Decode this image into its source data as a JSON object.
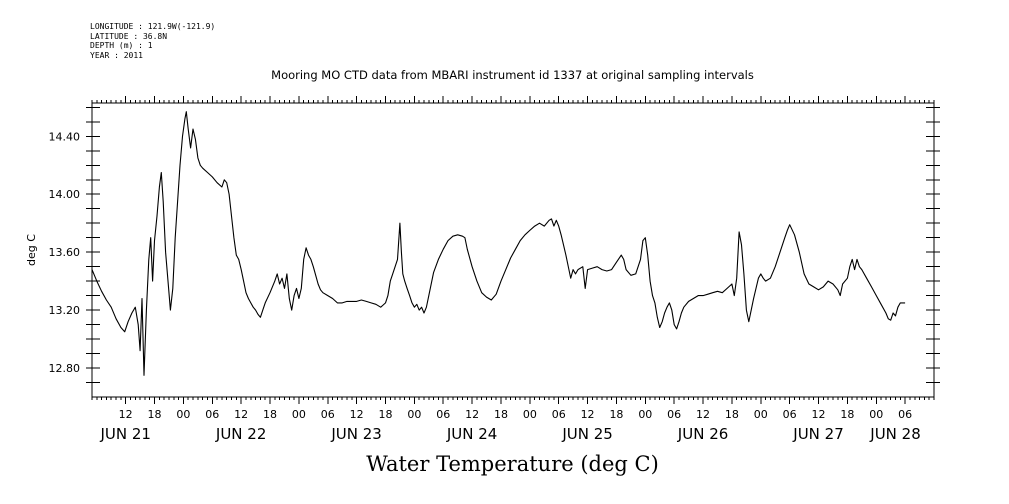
{
  "meta": {
    "longitude": "LONGITUDE : 121.9W(-121.9)",
    "latitude": "LATITUDE : 36.8N",
    "depth": "DEPTH (m) : 1",
    "year": "YEAR : 2011"
  },
  "caption": "Water Temperature (deg C)",
  "chart_data": {
    "type": "line",
    "title": "Mooring MO CTD data from MBARI instrument id 1337 at original sampling intervals",
    "xlabel": "",
    "ylabel": "deg C",
    "x_unit": "hours since JUN 21 00:00",
    "xlim": [
      5,
      180
    ],
    "ylim": [
      12.6,
      14.63
    ],
    "grid": false,
    "y_ticks": [
      12.8,
      13.2,
      13.6,
      14.0,
      14.4
    ],
    "y_tick_labels": [
      "12.80",
      "13.20",
      "13.60",
      "14.00",
      "14.40"
    ],
    "x_hour_ticks": [
      {
        "h": 12,
        "label": "12"
      },
      {
        "h": 18,
        "label": "18"
      },
      {
        "h": 24,
        "label": "00"
      },
      {
        "h": 30,
        "label": "06"
      },
      {
        "h": 36,
        "label": "12"
      },
      {
        "h": 42,
        "label": "18"
      },
      {
        "h": 48,
        "label": "00"
      },
      {
        "h": 54,
        "label": "06"
      },
      {
        "h": 60,
        "label": "12"
      },
      {
        "h": 66,
        "label": "18"
      },
      {
        "h": 72,
        "label": "00"
      },
      {
        "h": 78,
        "label": "06"
      },
      {
        "h": 84,
        "label": "12"
      },
      {
        "h": 90,
        "label": "18"
      },
      {
        "h": 96,
        "label": "00"
      },
      {
        "h": 102,
        "label": "06"
      },
      {
        "h": 108,
        "label": "12"
      },
      {
        "h": 114,
        "label": "18"
      },
      {
        "h": 120,
        "label": "00"
      },
      {
        "h": 126,
        "label": "06"
      },
      {
        "h": 132,
        "label": "12"
      },
      {
        "h": 138,
        "label": "18"
      },
      {
        "h": 144,
        "label": "00"
      },
      {
        "h": 150,
        "label": "06"
      },
      {
        "h": 156,
        "label": "12"
      },
      {
        "h": 162,
        "label": "18"
      },
      {
        "h": 168,
        "label": "00"
      },
      {
        "h": 174,
        "label": "06"
      }
    ],
    "x_day_labels": [
      {
        "h": 12,
        "label": "JUN 21"
      },
      {
        "h": 36,
        "label": "JUN 22"
      },
      {
        "h": 60,
        "label": "JUN 23"
      },
      {
        "h": 84,
        "label": "JUN 24"
      },
      {
        "h": 108,
        "label": "JUN 25"
      },
      {
        "h": 132,
        "label": "JUN 26"
      },
      {
        "h": 156,
        "label": "JUN 27"
      },
      {
        "h": 172,
        "label": "JUN 28"
      }
    ],
    "series": [
      {
        "color": "#000000",
        "points": [
          [
            5.0,
            13.48
          ],
          [
            6.0,
            13.4
          ],
          [
            7.0,
            13.33
          ],
          [
            8.0,
            13.27
          ],
          [
            9.0,
            13.22
          ],
          [
            10.0,
            13.14
          ],
          [
            11.0,
            13.08
          ],
          [
            11.8,
            13.05
          ],
          [
            12.5,
            13.12
          ],
          [
            13.3,
            13.18
          ],
          [
            14.0,
            13.22
          ],
          [
            14.6,
            13.1
          ],
          [
            15.0,
            12.92
          ],
          [
            15.4,
            13.28
          ],
          [
            15.8,
            12.75
          ],
          [
            16.3,
            13.2
          ],
          [
            16.8,
            13.55
          ],
          [
            17.2,
            13.7
          ],
          [
            17.6,
            13.4
          ],
          [
            18.0,
            13.68
          ],
          [
            18.5,
            13.85
          ],
          [
            19.0,
            14.05
          ],
          [
            19.4,
            14.15
          ],
          [
            19.8,
            13.95
          ],
          [
            20.3,
            13.6
          ],
          [
            20.8,
            13.4
          ],
          [
            21.3,
            13.2
          ],
          [
            21.8,
            13.35
          ],
          [
            22.3,
            13.7
          ],
          [
            22.8,
            13.95
          ],
          [
            23.3,
            14.2
          ],
          [
            23.8,
            14.4
          ],
          [
            24.3,
            14.52
          ],
          [
            24.6,
            14.57
          ],
          [
            25.0,
            14.45
          ],
          [
            25.5,
            14.32
          ],
          [
            26.0,
            14.45
          ],
          [
            26.5,
            14.38
          ],
          [
            27.0,
            14.25
          ],
          [
            27.5,
            14.2
          ],
          [
            28.0,
            14.18
          ],
          [
            29.0,
            14.15
          ],
          [
            30.0,
            14.12
          ],
          [
            31.0,
            14.08
          ],
          [
            32.0,
            14.05
          ],
          [
            32.5,
            14.1
          ],
          [
            33.0,
            14.08
          ],
          [
            33.5,
            14.0
          ],
          [
            34.0,
            13.85
          ],
          [
            34.5,
            13.7
          ],
          [
            35.0,
            13.58
          ],
          [
            35.5,
            13.55
          ],
          [
            36.0,
            13.48
          ],
          [
            36.5,
            13.4
          ],
          [
            37.0,
            13.32
          ],
          [
            37.5,
            13.28
          ],
          [
            38.0,
            13.25
          ],
          [
            38.5,
            13.22
          ],
          [
            39.0,
            13.2
          ],
          [
            39.5,
            13.17
          ],
          [
            40.0,
            13.15
          ],
          [
            40.5,
            13.2
          ],
          [
            41.0,
            13.25
          ],
          [
            42.0,
            13.32
          ],
          [
            43.0,
            13.4
          ],
          [
            43.5,
            13.45
          ],
          [
            44.0,
            13.38
          ],
          [
            44.5,
            13.42
          ],
          [
            45.0,
            13.35
          ],
          [
            45.5,
            13.45
          ],
          [
            46.0,
            13.28
          ],
          [
            46.5,
            13.2
          ],
          [
            47.0,
            13.3
          ],
          [
            47.5,
            13.35
          ],
          [
            48.0,
            13.28
          ],
          [
            48.5,
            13.35
          ],
          [
            49.0,
            13.55
          ],
          [
            49.5,
            13.63
          ],
          [
            50.0,
            13.58
          ],
          [
            50.5,
            13.55
          ],
          [
            51.0,
            13.5
          ],
          [
            51.5,
            13.44
          ],
          [
            52.0,
            13.38
          ],
          [
            52.5,
            13.34
          ],
          [
            53.0,
            13.32
          ],
          [
            54.0,
            13.3
          ],
          [
            55.0,
            13.28
          ],
          [
            56.0,
            13.25
          ],
          [
            57.0,
            13.25
          ],
          [
            58.0,
            13.26
          ],
          [
            59.0,
            13.26
          ],
          [
            60.0,
            13.26
          ],
          [
            61.0,
            13.27
          ],
          [
            62.0,
            13.26
          ],
          [
            63.0,
            13.25
          ],
          [
            64.0,
            13.24
          ],
          [
            65.0,
            13.22
          ],
          [
            66.0,
            13.25
          ],
          [
            66.5,
            13.3
          ],
          [
            67.0,
            13.4
          ],
          [
            67.5,
            13.45
          ],
          [
            68.0,
            13.5
          ],
          [
            68.5,
            13.55
          ],
          [
            69.0,
            13.8
          ],
          [
            69.3,
            13.6
          ],
          [
            69.6,
            13.45
          ],
          [
            70.0,
            13.4
          ],
          [
            70.5,
            13.35
          ],
          [
            71.0,
            13.3
          ],
          [
            71.5,
            13.25
          ],
          [
            72.0,
            13.22
          ],
          [
            72.5,
            13.24
          ],
          [
            73.0,
            13.2
          ],
          [
            73.5,
            13.22
          ],
          [
            74.0,
            13.18
          ],
          [
            74.5,
            13.22
          ],
          [
            75.0,
            13.3
          ],
          [
            75.5,
            13.38
          ],
          [
            76.0,
            13.46
          ],
          [
            77.0,
            13.55
          ],
          [
            78.0,
            13.62
          ],
          [
            79.0,
            13.68
          ],
          [
            80.0,
            13.71
          ],
          [
            81.0,
            13.72
          ],
          [
            82.0,
            13.71
          ],
          [
            82.5,
            13.7
          ],
          [
            83.0,
            13.62
          ],
          [
            84.0,
            13.5
          ],
          [
            85.0,
            13.4
          ],
          [
            86.0,
            13.32
          ],
          [
            87.0,
            13.29
          ],
          [
            88.0,
            13.27
          ],
          [
            89.0,
            13.31
          ],
          [
            90.0,
            13.4
          ],
          [
            91.0,
            13.48
          ],
          [
            92.0,
            13.56
          ],
          [
            93.0,
            13.62
          ],
          [
            94.0,
            13.68
          ],
          [
            95.0,
            13.72
          ],
          [
            96.0,
            13.75
          ],
          [
            97.0,
            13.78
          ],
          [
            98.0,
            13.8
          ],
          [
            99.0,
            13.78
          ],
          [
            100.0,
            13.82
          ],
          [
            100.5,
            13.83
          ],
          [
            101.0,
            13.78
          ],
          [
            101.5,
            13.82
          ],
          [
            102.0,
            13.78
          ],
          [
            102.5,
            13.72
          ],
          [
            103.0,
            13.65
          ],
          [
            103.5,
            13.58
          ],
          [
            104.0,
            13.5
          ],
          [
            104.5,
            13.42
          ],
          [
            105.0,
            13.48
          ],
          [
            105.5,
            13.45
          ],
          [
            106.0,
            13.48
          ],
          [
            107.0,
            13.5
          ],
          [
            107.5,
            13.35
          ],
          [
            108.0,
            13.48
          ],
          [
            109.0,
            13.49
          ],
          [
            110.0,
            13.5
          ],
          [
            111.0,
            13.48
          ],
          [
            112.0,
            13.47
          ],
          [
            113.0,
            13.48
          ],
          [
            114.0,
            13.53
          ],
          [
            115.0,
            13.58
          ],
          [
            115.5,
            13.55
          ],
          [
            116.0,
            13.48
          ],
          [
            117.0,
            13.44
          ],
          [
            118.0,
            13.45
          ],
          [
            119.0,
            13.55
          ],
          [
            119.5,
            13.68
          ],
          [
            120.0,
            13.7
          ],
          [
            120.5,
            13.58
          ],
          [
            121.0,
            13.4
          ],
          [
            121.5,
            13.3
          ],
          [
            122.0,
            13.25
          ],
          [
            122.5,
            13.15
          ],
          [
            123.0,
            13.08
          ],
          [
            123.5,
            13.12
          ],
          [
            124.0,
            13.18
          ],
          [
            124.5,
            13.22
          ],
          [
            125.0,
            13.25
          ],
          [
            125.5,
            13.2
          ],
          [
            126.0,
            13.1
          ],
          [
            126.5,
            13.07
          ],
          [
            127.0,
            13.12
          ],
          [
            127.5,
            13.18
          ],
          [
            128.0,
            13.22
          ],
          [
            129.0,
            13.26
          ],
          [
            130.0,
            13.28
          ],
          [
            131.0,
            13.3
          ],
          [
            132.0,
            13.3
          ],
          [
            133.0,
            13.31
          ],
          [
            134.0,
            13.32
          ],
          [
            135.0,
            13.33
          ],
          [
            136.0,
            13.32
          ],
          [
            137.0,
            13.35
          ],
          [
            138.0,
            13.38
          ],
          [
            138.5,
            13.3
          ],
          [
            139.0,
            13.42
          ],
          [
            139.5,
            13.74
          ],
          [
            140.0,
            13.65
          ],
          [
            140.5,
            13.45
          ],
          [
            141.0,
            13.2
          ],
          [
            141.5,
            13.12
          ],
          [
            142.0,
            13.2
          ],
          [
            142.5,
            13.28
          ],
          [
            143.0,
            13.35
          ],
          [
            143.5,
            13.42
          ],
          [
            144.0,
            13.45
          ],
          [
            144.5,
            13.42
          ],
          [
            145.0,
            13.4
          ],
          [
            146.0,
            13.42
          ],
          [
            147.0,
            13.5
          ],
          [
            148.0,
            13.6
          ],
          [
            149.0,
            13.7
          ],
          [
            149.5,
            13.75
          ],
          [
            150.0,
            13.79
          ],
          [
            151.0,
            13.72
          ],
          [
            152.0,
            13.6
          ],
          [
            153.0,
            13.45
          ],
          [
            154.0,
            13.38
          ],
          [
            155.0,
            13.36
          ],
          [
            156.0,
            13.34
          ],
          [
            157.0,
            13.36
          ],
          [
            158.0,
            13.4
          ],
          [
            159.0,
            13.38
          ],
          [
            160.0,
            13.34
          ],
          [
            160.5,
            13.3
          ],
          [
            161.0,
            13.38
          ],
          [
            162.0,
            13.42
          ],
          [
            162.5,
            13.5
          ],
          [
            163.0,
            13.55
          ],
          [
            163.5,
            13.48
          ],
          [
            164.0,
            13.55
          ],
          [
            164.5,
            13.5
          ],
          [
            165.0,
            13.48
          ],
          [
            166.0,
            13.42
          ],
          [
            167.0,
            13.36
          ],
          [
            168.0,
            13.3
          ],
          [
            169.0,
            13.24
          ],
          [
            170.0,
            13.18
          ],
          [
            170.5,
            13.14
          ],
          [
            171.0,
            13.13
          ],
          [
            171.5,
            13.18
          ],
          [
            172.0,
            13.16
          ],
          [
            172.5,
            13.22
          ],
          [
            173.0,
            13.25
          ],
          [
            174.0,
            13.25
          ]
        ]
      }
    ]
  }
}
